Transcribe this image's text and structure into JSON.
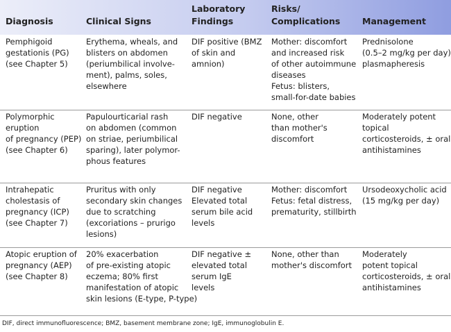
{
  "table": {
    "header": [
      [
        "Diagnosis"
      ],
      [
        "Clinical Signs"
      ],
      [
        "Laboratory",
        "Findings"
      ],
      [
        "Risks/",
        "Complications"
      ],
      [
        "Management"
      ]
    ],
    "rows": [
      [
        [
          "Pemphigoid",
          "gestationis (PG)",
          "(see Chapter 5)"
        ],
        [
          "Erythema, wheals, and",
          "blisters on abdomen",
          "(periumbilical involve-",
          "ment), palms, soles,",
          "elsewhere"
        ],
        [
          "DIF positive (BMZ",
          "of skin and",
          "amnion)"
        ],
        [
          "Mother: discomfort",
          "and increased risk",
          "of other autoimmune",
          "diseases",
          "Fetus: blisters,",
          "small-for-date babies"
        ],
        [
          "Prednisolone",
          "(0.5–2 mg/kg per day),",
          "plasmapheresis"
        ]
      ],
      [
        [
          "Polymorphic",
          "eruption",
          "of pregnancy (PEP)",
          "(see Chapter 6)"
        ],
        [
          "Papulourticarial rash",
          "on abdomen (common",
          "on striae, periumbilical",
          "sparing), later polymor-",
          "phous features"
        ],
        [
          "DIF negative"
        ],
        [
          "None, other",
          "than mother's",
          "discomfort"
        ],
        [
          "Moderately potent",
          "topical",
          "corticosteroids, ± oral",
          "antihistamines"
        ]
      ],
      [
        [
          "Intrahepatic",
          "cholestasis of",
          "pregnancy (ICP)",
          "(see Chapter 7)"
        ],
        [
          "Pruritus with only",
          "secondary skin changes",
          "due to scratching",
          "(excoriations – prurigo",
          "lesions)"
        ],
        [
          "DIF negative",
          "Elevated total",
          "serum bile acid",
          "levels"
        ],
        [
          "Mother: discomfort",
          "Fetus: fetal distress,",
          "prematurity, stillbirth"
        ],
        [
          "Ursodeoxycholic acid",
          "(15 mg/kg per day)"
        ]
      ],
      [
        [
          "Atopic eruption of",
          "pregnancy (AEP)",
          "(see Chapter 8)"
        ],
        [
          "20% exacerbation",
          "of pre-existing atopic",
          "eczema; 80% first",
          "manifestation of atopic",
          "skin lesions (E-type, P-type)"
        ],
        [
          "DIF negative ±",
          "elevated total",
          "serum IgE",
          "levels"
        ],
        [
          "None, other than",
          "mother's discomfort"
        ],
        [
          "Moderately",
          "potent topical",
          "corticosteroids, ± oral",
          "antihistamines"
        ]
      ]
    ]
  },
  "footnote": "DIF, direct immunofluorescence; BMZ, basement membrane zone; IgE, immunoglobulin E."
}
